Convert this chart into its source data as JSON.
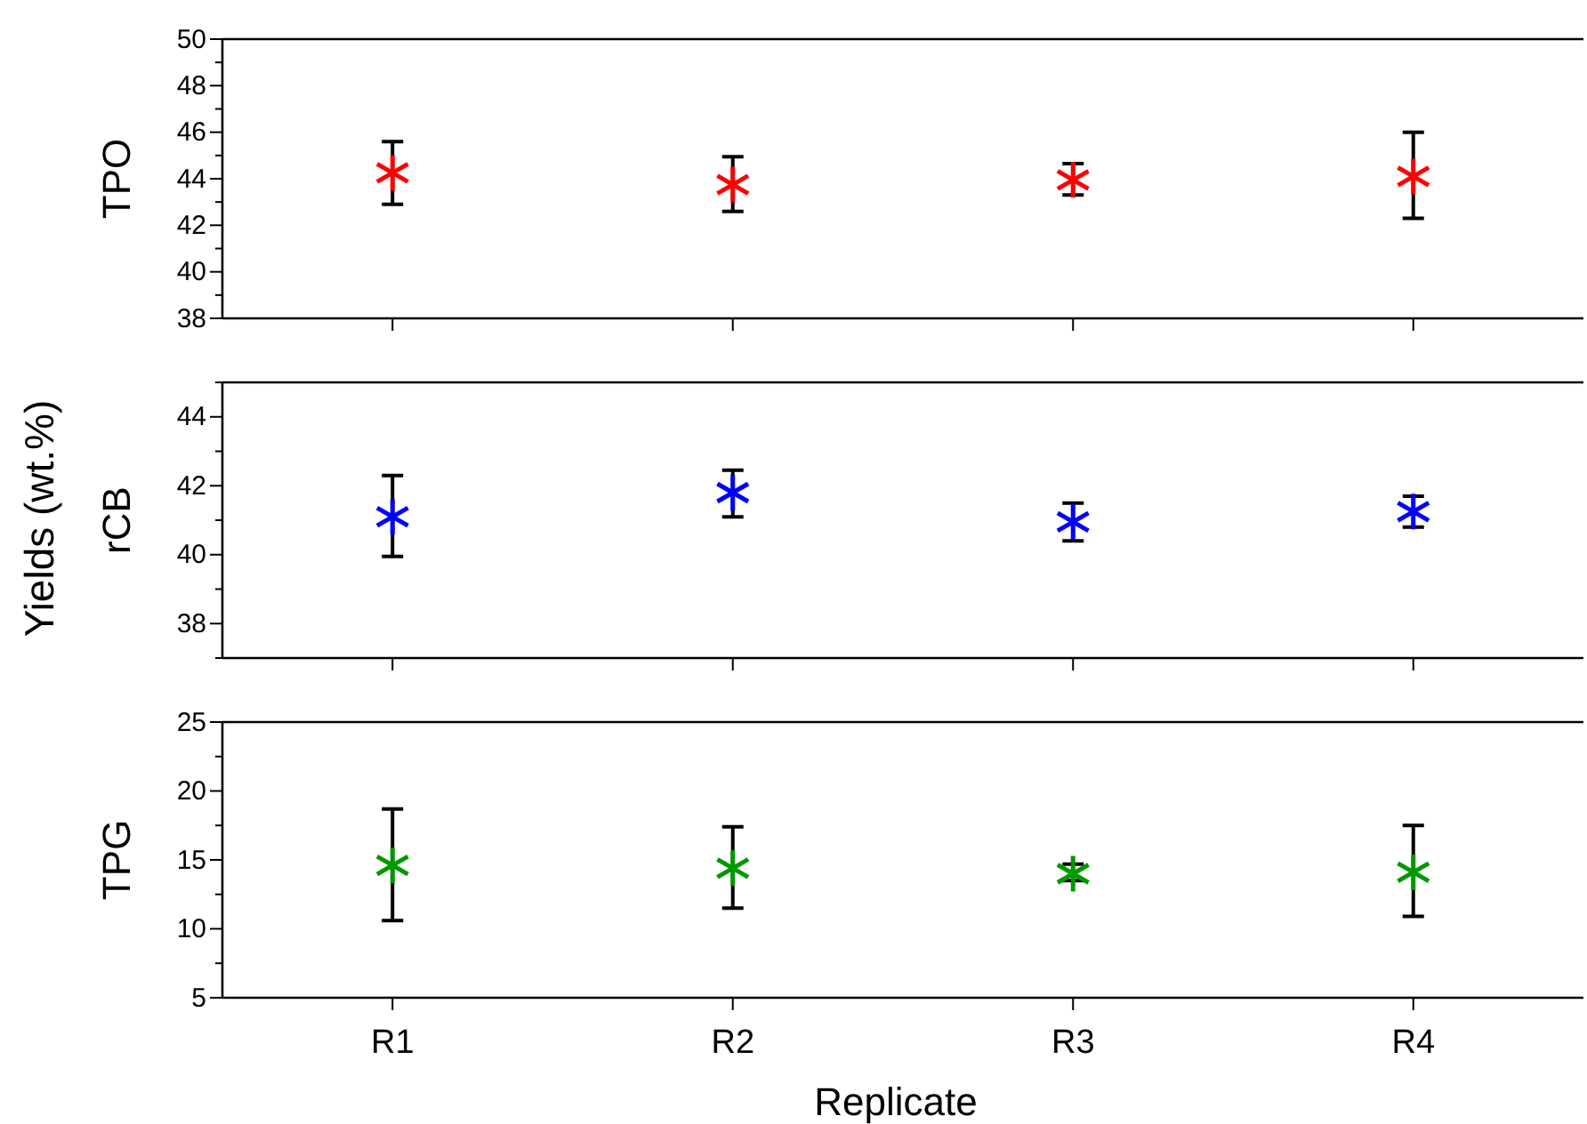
{
  "chart_data": [
    {
      "type": "scatter",
      "ylabel": "TPO",
      "annotations": [
        "Yields (wt.%)"
      ],
      "categories": [
        null,
        null,
        null,
        null
      ],
      "marker": "cross",
      "tick_labels": "y",
      "series": [
        {
          "color": "#ff0000",
          "values": [
            44.25,
            43.75,
            43.95,
            44.1
          ],
          "errors": [
            [
              42.9,
              45.6
            ],
            [
              42.6,
              44.95
            ],
            [
              43.3,
              44.65
            ],
            [
              42.3,
              46.0
            ]
          ]
        }
      ],
      "ylim": [
        38,
        50
      ],
      "yticks": [
        38,
        {
          "value": 39,
          "label": null
        },
        40,
        {
          "value": 41,
          "label": null
        },
        42,
        {
          "value": 43,
          "label": null
        },
        44,
        {
          "value": 45,
          "label": null
        },
        46,
        {
          "value": 47,
          "label": null
        },
        48,
        {
          "value": 49,
          "label": null
        },
        50
      ]
    },
    {
      "type": "scatter",
      "ylabel": "rCB",
      "categories": [
        null,
        null,
        null,
        null
      ],
      "marker": "cross",
      "tick_labels": "y",
      "series": [
        {
          "color": "#0000ff",
          "values": [
            41.1,
            41.8,
            40.95,
            41.25
          ],
          "errors": [
            [
              39.95,
              42.3
            ],
            [
              41.1,
              42.45
            ],
            [
              40.4,
              41.5
            ],
            [
              40.8,
              41.7
            ]
          ]
        }
      ],
      "ylim": [
        37,
        45
      ],
      "yticks": [
        {
          "value": 37,
          "label": null
        },
        38,
        {
          "value": 39,
          "label": null
        },
        40,
        {
          "value": 41,
          "label": null
        },
        42,
        {
          "value": 43,
          "label": null
        },
        44,
        {
          "value": 45,
          "label": null
        }
      ]
    },
    {
      "type": "scatter",
      "ylabel": "TPG",
      "xlabel": "Replicate",
      "categories": [
        "R1",
        "R2",
        "R3",
        "R4"
      ],
      "marker": "cross",
      "series": [
        {
          "color": "#009900",
          "values": [
            14.6,
            14.4,
            14.0,
            14.1
          ],
          "errors": [
            [
              10.6,
              18.7
            ],
            [
              11.5,
              17.4
            ],
            [
              13.5,
              14.7
            ],
            [
              10.9,
              17.5
            ]
          ]
        }
      ],
      "ylim": [
        5,
        25
      ],
      "yticks": [
        5,
        {
          "value": 7.5,
          "label": null
        },
        10,
        {
          "value": 12.5,
          "label": null
        },
        15,
        {
          "value": 17.5,
          "label": null
        },
        20,
        {
          "value": 22.5,
          "label": null
        },
        25
      ]
    }
  ]
}
